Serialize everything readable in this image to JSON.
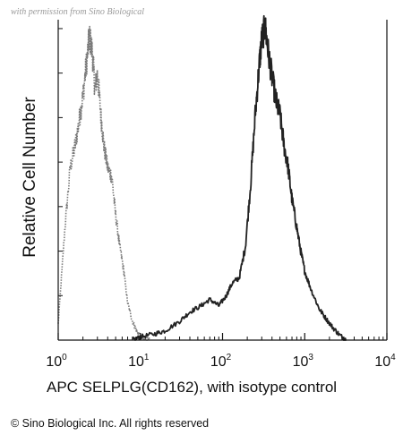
{
  "watermark": "with permission from Sino Biological",
  "copyright": "© Sino Biological Inc. All rights reserved",
  "chart_data": {
    "type": "area",
    "xlabel": "APC SELPLG(CD162), with isotype control",
    "ylabel": "Relative Cell Number",
    "xscale": "log",
    "xlim": [
      1,
      10000
    ],
    "ylim": [
      0,
      1
    ],
    "x_ticks": [
      {
        "value": 1,
        "base": "10",
        "exp": "0"
      },
      {
        "value": 10,
        "base": "10",
        "exp": "1"
      },
      {
        "value": 100,
        "base": "10",
        "exp": "2"
      },
      {
        "value": 1000,
        "base": "10",
        "exp": "3"
      },
      {
        "value": 10000,
        "base": "10",
        "exp": "4"
      }
    ],
    "grid": false,
    "legend": "none",
    "series": [
      {
        "color": "#7a7a7a",
        "style": "dotted",
        "x": [
          1.0,
          1.2,
          1.4,
          1.6,
          1.8,
          2.0,
          2.2,
          2.4,
          2.6,
          2.8,
          3.0,
          3.3,
          3.6,
          4.0,
          4.5,
          5.0,
          5.6,
          6.3,
          7.0,
          8.0,
          9.0,
          10.0,
          11.0,
          13.0
        ],
        "values": [
          0.05,
          0.35,
          0.55,
          0.62,
          0.7,
          0.78,
          0.88,
          0.97,
          0.92,
          0.8,
          0.85,
          0.72,
          0.62,
          0.55,
          0.52,
          0.4,
          0.3,
          0.22,
          0.12,
          0.06,
          0.03,
          0.01,
          0.005,
          0.0
        ]
      },
      {
        "color": "#222222",
        "style": "solid",
        "x": [
          8.0,
          10.0,
          15.0,
          20.0,
          30.0,
          40.0,
          55.0,
          70.0,
          90.0,
          110.0,
          130.0,
          160.0,
          190.0,
          220.0,
          250.0,
          280.0,
          300.0,
          330.0,
          360.0,
          400.0,
          450.0,
          500.0,
          560.0,
          630.0,
          700.0,
          800.0,
          900.0,
          1000.0,
          1200.0,
          1500.0,
          1800.0,
          2200.0,
          2700.0,
          3200.0
        ],
        "values": [
          0.0,
          0.01,
          0.02,
          0.03,
          0.06,
          0.09,
          0.11,
          0.13,
          0.11,
          0.14,
          0.18,
          0.2,
          0.3,
          0.5,
          0.72,
          0.88,
          0.96,
          1.0,
          0.92,
          0.84,
          0.76,
          0.72,
          0.62,
          0.55,
          0.45,
          0.36,
          0.28,
          0.22,
          0.16,
          0.1,
          0.07,
          0.04,
          0.015,
          0.0
        ]
      }
    ]
  }
}
